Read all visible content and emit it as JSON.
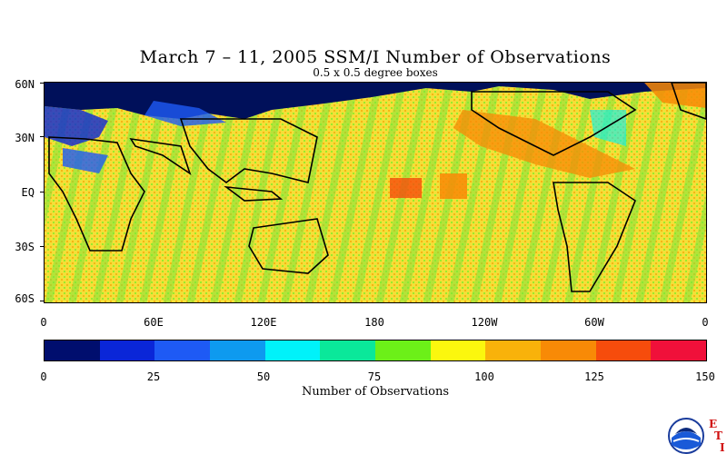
{
  "title": "March 7 – 11, 2005 SSM/I Number of Observations",
  "subtitle": "0.5 x 0.5 degree boxes",
  "lat_labels": [
    "60N",
    "30N",
    "EQ",
    "30S",
    "60S"
  ],
  "lon_labels": [
    "0",
    "60E",
    "120E",
    "180",
    "120W",
    "60W",
    "0"
  ],
  "colorbar": {
    "title": "Number of Observations",
    "tick_labels": [
      "0",
      "25",
      "50",
      "75",
      "100",
      "125",
      "150"
    ],
    "colors": [
      "#000e6e",
      "#0a26d8",
      "#1e5af5",
      "#0e9aef",
      "#00f2fa",
      "#0ae89a",
      "#6cf018",
      "#fbf70e",
      "#f9b20a",
      "#f88a06",
      "#f64c0c",
      "#f0103a"
    ]
  },
  "logo": {
    "agency": "NOAA",
    "icon": "noaa-logo-icon",
    "mark_letters": [
      "E",
      "T",
      "I"
    ]
  },
  "chart_data": {
    "type": "heatmap",
    "title": "March 7 – 11, 2005 SSM/I Number of Observations",
    "subtitle": "0.5 x 0.5 degree boxes",
    "x_range": [
      0,
      360
    ],
    "y_range": [
      -60,
      60
    ],
    "colorbar_range": [
      0,
      150
    ],
    "colorbar_title": "Number of Observations"
  }
}
